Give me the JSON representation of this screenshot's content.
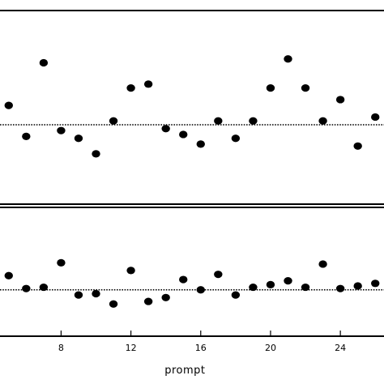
{
  "chart_data": [
    {
      "type": "scatter",
      "panel": "top",
      "xlabel": "",
      "xlim": [
        4.5,
        26.5
      ],
      "ylim": [
        0,
        1
      ],
      "reference_line": {
        "y": 0.41,
        "style": "dotted"
      },
      "x": [
        5,
        6,
        7,
        8,
        9,
        10,
        11,
        12,
        13,
        14,
        15,
        16,
        17,
        18,
        19,
        20,
        21,
        22,
        23,
        24,
        25,
        26
      ],
      "values": [
        0.51,
        0.35,
        0.73,
        0.38,
        0.34,
        0.26,
        0.43,
        0.6,
        0.62,
        0.39,
        0.36,
        0.31,
        0.43,
        0.34,
        0.43,
        0.6,
        0.75,
        0.6,
        0.43,
        0.54,
        0.3,
        0.45
      ]
    },
    {
      "type": "scatter",
      "panel": "bottom",
      "xlabel": "prompt",
      "xlim": [
        4.5,
        26.5
      ],
      "ylim": [
        0,
        1
      ],
      "reference_line": {
        "y": 0.36,
        "style": "dotted"
      },
      "x_ticks": [
        8,
        12,
        16,
        20,
        24
      ],
      "x_tick_labels": [
        "8",
        "12",
        "16",
        "20",
        "24"
      ],
      "x": [
        5,
        6,
        7,
        8,
        9,
        10,
        11,
        12,
        13,
        14,
        15,
        16,
        17,
        18,
        19,
        20,
        21,
        22,
        23,
        24,
        25,
        26
      ],
      "values": [
        0.47,
        0.37,
        0.38,
        0.57,
        0.32,
        0.33,
        0.25,
        0.51,
        0.27,
        0.3,
        0.44,
        0.36,
        0.48,
        0.32,
        0.38,
        0.4,
        0.43,
        0.38,
        0.56,
        0.37,
        0.39,
        0.41
      ]
    }
  ]
}
